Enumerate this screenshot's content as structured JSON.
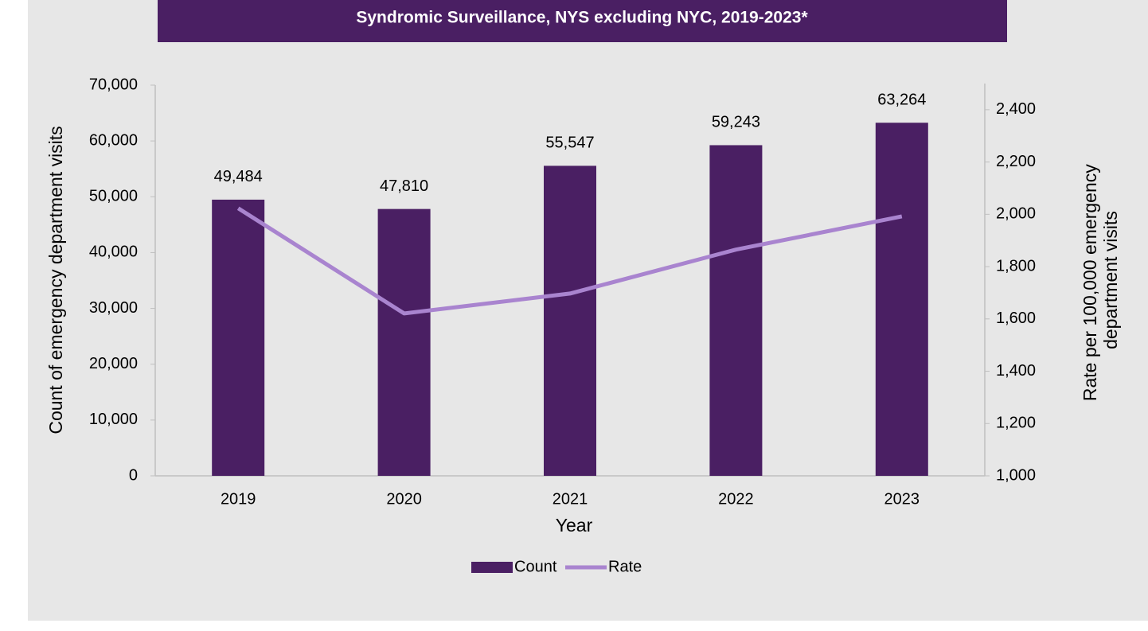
{
  "chart_data": {
    "type": "bar_line",
    "title": "Syndromic Surveillance, NYS excluding NYC, 2019-2023*",
    "xlabel": "Year",
    "ylabel": "Count of emergency department visits",
    "y2label": [
      "Rate per 100,000 emergency",
      "department visits"
    ],
    "categories": [
      "2019",
      "2020",
      "2021",
      "2022",
      "2023"
    ],
    "series": [
      {
        "name": "Count",
        "type": "bar",
        "color": "#4a1f63",
        "axis": "y",
        "values": [
          49484,
          47810,
          55547,
          59243,
          63264
        ],
        "value_labels": [
          "49,484",
          "47,810",
          "55,547",
          "59,243",
          "63,264"
        ]
      },
      {
        "name": "Rate",
        "type": "line",
        "color": "#a984cf",
        "axis": "y2",
        "values": [
          2023,
          1621,
          1697,
          1865,
          1992
        ]
      }
    ],
    "ylim": [
      0,
      70000
    ],
    "yticks": [
      0,
      {
        "value": 10000,
        "label": "10,000"
      },
      {
        "value": 20000,
        "label": "20,000"
      },
      {
        "value": 30000,
        "label": "30,000"
      },
      {
        "value": 40000,
        "label": "40,000"
      },
      {
        "value": 50000,
        "label": "50,000"
      },
      {
        "value": 60000,
        "label": "60,000"
      },
      {
        "value": 70000,
        "label": "70,000"
      }
    ],
    "y2lim": [
      1000,
      2500
    ],
    "y2ticks": [
      {
        "value": 1000,
        "label": "1,000"
      },
      {
        "value": 1200,
        "label": "1,200"
      },
      {
        "value": 1400,
        "label": "1,400"
      },
      {
        "value": 1600,
        "label": "1,600"
      },
      {
        "value": 1800,
        "label": "1,800"
      },
      {
        "value": 2000,
        "label": "2,000"
      },
      {
        "value": 2200,
        "label": "2,200"
      },
      {
        "value": 2400,
        "label": "2,400"
      }
    ],
    "legend": "bottom"
  }
}
